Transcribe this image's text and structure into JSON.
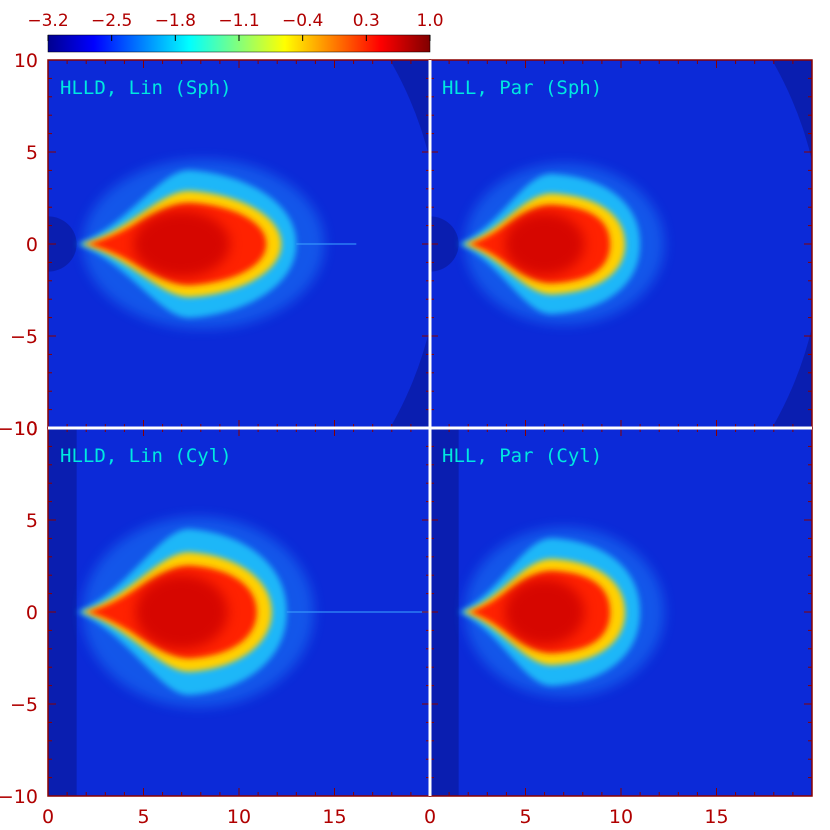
{
  "chart_data": {
    "type": "heatmap",
    "colorbar": {
      "ticks": [
        "−3.2",
        "−2.5",
        "−1.8",
        "−1.1",
        "−0.4",
        "0.3",
        "1.0"
      ],
      "range": [
        -3.2,
        1.0
      ],
      "colormap": "jet",
      "colors": [
        "#00008f",
        "#0000ff",
        "#00ffff",
        "#ffff00",
        "#ff0000",
        "#800000"
      ]
    },
    "xlim": [
      0,
      20
    ],
    "ylim": [
      -10,
      10
    ],
    "x_ticks_left": [
      "0",
      "5",
      "10",
      "15"
    ],
    "x_ticks_right": [
      "0",
      "5",
      "10",
      "15"
    ],
    "y_ticks_top": [
      "10",
      "5",
      "0",
      "−5",
      "−10"
    ],
    "y_ticks_bottom": [
      "10",
      "5",
      "0",
      "−5",
      "−10"
    ],
    "panels": [
      {
        "title": "HLLD, Lin (Sph)",
        "geometry": "spherical",
        "lobe": {
          "x_extent": [
            1.5,
            13
          ],
          "y_half_width": 4.0,
          "peak_x": 7,
          "trailing_jet": true
        }
      },
      {
        "title": "HLL, Par (Sph)",
        "geometry": "spherical",
        "lobe": {
          "x_extent": [
            1.5,
            11
          ],
          "y_half_width": 3.8,
          "peak_x": 6,
          "trailing_jet": false
        }
      },
      {
        "title": "HLLD, Lin (Cyl)",
        "geometry": "cylindrical",
        "lobe": {
          "x_extent": [
            1.5,
            12.5
          ],
          "y_half_width": 4.5,
          "peak_x": 7,
          "trailing_jet": true
        }
      },
      {
        "title": "HLL, Par (Cyl)",
        "geometry": "cylindrical",
        "lobe": {
          "x_extent": [
            1.5,
            11
          ],
          "y_half_width": 4.0,
          "peak_x": 6,
          "trailing_jet": false
        }
      }
    ],
    "background_color": "#0c2ad8"
  }
}
